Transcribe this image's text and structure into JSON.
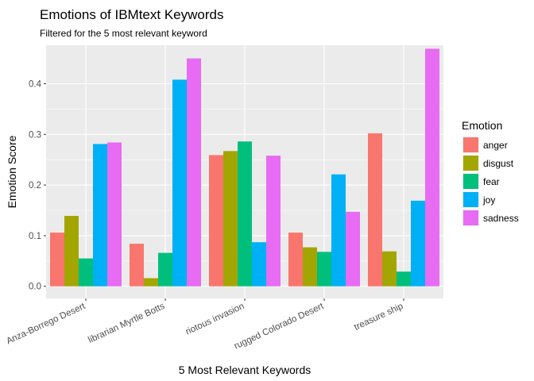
{
  "chart_data": {
    "type": "bar",
    "title": "Emotions of IBMtext Keywords",
    "subtitle": "Filtered for the 5 most relevant keyword",
    "xlabel": "5 Most Relevant Keywords",
    "ylabel": "Emotion Score",
    "categories": [
      "Anza-Borrego Desert",
      "librarian Myrtle Botts",
      "riotous invasion",
      "rugged Colorado Desert",
      "treasure ship"
    ],
    "ylim": [
      -0.024,
      0.476
    ],
    "yticks": [
      0.0,
      0.1,
      0.2,
      0.3,
      0.4
    ],
    "ytick_labels": [
      "0.0",
      "0.1",
      "0.2",
      "0.3",
      "0.4"
    ],
    "grid": true,
    "legend": {
      "title": "Emotion",
      "position": "right"
    },
    "series": [
      {
        "name": "anger",
        "color": "#F8766D",
        "values": [
          0.106,
          0.084,
          0.259,
          0.106,
          0.302
        ]
      },
      {
        "name": "disgust",
        "color": "#A3A500",
        "values": [
          0.139,
          0.016,
          0.267,
          0.077,
          0.069
        ]
      },
      {
        "name": "fear",
        "color": "#00BF7D",
        "values": [
          0.055,
          0.066,
          0.286,
          0.068,
          0.029
        ]
      },
      {
        "name": "joy",
        "color": "#00B0F6",
        "values": [
          0.281,
          0.408,
          0.087,
          0.221,
          0.169
        ]
      },
      {
        "name": "sadness",
        "color": "#E76BF3",
        "values": [
          0.284,
          0.45,
          0.258,
          0.147,
          0.469
        ]
      }
    ]
  },
  "colors": {
    "panel_background": "#EBEBEB",
    "grid_major": "#FFFFFF",
    "tick_text": "#4D4D4D"
  }
}
